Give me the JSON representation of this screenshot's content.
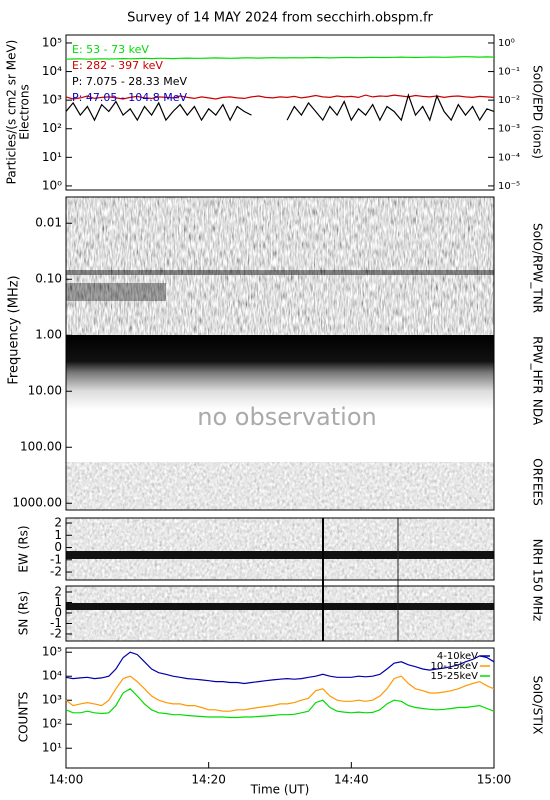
{
  "chart_data": [
    {
      "type": "line",
      "title": "Survey of 14 MAY 2024 from secchirh.obspm.fr",
      "ylabel": "Particles/(s cm2 sr MeV)",
      "ylabel_sub": "Electrons",
      "y2label": "SoIO/EPD (ions)",
      "log": true,
      "xlim": [
        0,
        60
      ],
      "ylim": [
        0.72,
        190000
      ],
      "y2lim": [
        7.2e-06,
        1.9
      ],
      "yticks": [
        {
          "value": 1,
          "label": "10⁰"
        },
        {
          "value": 10,
          "label": "10¹"
        },
        {
          "value": 100,
          "label": "10²"
        },
        {
          "value": 1000,
          "label": "10³"
        },
        {
          "value": 10000,
          "label": "10⁴"
        },
        {
          "value": 100000,
          "label": "10⁵"
        }
      ],
      "y2ticks": [
        {
          "value": 1e-05,
          "label": "10⁻⁵"
        },
        {
          "value": 0.0001,
          "label": "10⁻⁴"
        },
        {
          "value": 0.001,
          "label": "10⁻³"
        },
        {
          "value": 0.01,
          "label": "10⁻²"
        },
        {
          "value": 0.1,
          "label": "10⁻¹"
        },
        {
          "value": 1,
          "label": "10⁰"
        }
      ],
      "x": [
        0,
        1,
        2,
        3,
        4,
        5,
        6,
        7,
        8,
        9,
        10,
        11,
        12,
        13,
        14,
        15,
        16,
        17,
        18,
        19,
        20,
        21,
        22,
        23,
        24,
        25,
        26,
        27,
        28,
        29,
        30,
        31,
        32,
        33,
        34,
        35,
        36,
        37,
        38,
        39,
        40,
        41,
        42,
        43,
        44,
        45,
        46,
        47,
        48,
        49,
        50,
        51,
        52,
        53,
        54,
        55,
        56,
        57,
        58,
        59,
        60
      ],
      "series": [
        {
          "name": "E: 53 - 73 keV",
          "color": "#00dd00",
          "values": [
            27000,
            27500,
            28000,
            27000,
            27500,
            28000,
            27500,
            28000,
            28500,
            28000,
            28500,
            29000,
            28500,
            29000,
            29000,
            28500,
            29000,
            29500,
            29000,
            29000,
            29500,
            30000,
            29500,
            29000,
            29500,
            30000,
            30000,
            29500,
            30000,
            30500,
            30000,
            30000,
            30500,
            30000,
            30500,
            31000,
            30500,
            30000,
            30500,
            31000,
            31000,
            30500,
            31000,
            31500,
            31000,
            31000,
            31500,
            32000,
            31500,
            31000,
            31500,
            32000,
            32000,
            31500,
            32000,
            32500,
            33000,
            32500,
            32000,
            32500,
            32000
          ]
        },
        {
          "name": "E: 282 - 397 keV",
          "color": "#cc0000",
          "values": [
            1300,
            1100,
            1200,
            1400,
            1150,
            1250,
            1300,
            1200,
            1100,
            1250,
            1350,
            1200,
            1150,
            1300,
            1250,
            1200,
            1400,
            1250,
            1150,
            1300,
            1200,
            1100,
            1250,
            1300,
            1200,
            1150,
            1300,
            1400,
            1250,
            1200,
            1300,
            1250,
            1350,
            1200,
            1300,
            1450,
            1300,
            1250,
            1400,
            1300,
            1350,
            1250,
            1500,
            1300,
            1400,
            1350,
            1500,
            1400,
            1300,
            1450,
            1350,
            1300,
            1400,
            1250,
            1350,
            1400,
            1300,
            1250,
            1350,
            1300,
            1250
          ]
        },
        {
          "name": "P: 7.075 - 28.33 MeV",
          "color": "#000000",
          "axis": "y2",
          "values": [
            0.004,
            0.008,
            0.003,
            0.006,
            0.002,
            0.007,
            0.004,
            0.009,
            0.003,
            0.005,
            0.002,
            0.006,
            0.003,
            0.008,
            0.002,
            0.004,
            0.007,
            0.003,
            0.006,
            0.002,
            0.005,
            0.003,
            0.007,
            0.002,
            0.006,
            0.004,
            0.003,
            null,
            null,
            null,
            null,
            0.002,
            0.006,
            0.003,
            0.008,
            0.004,
            0.002,
            0.006,
            0.003,
            0.009,
            0.002,
            0.005,
            0.003,
            0.007,
            0.002,
            0.006,
            0.004,
            0.002,
            0.015,
            0.003,
            0.006,
            0.002,
            0.014,
            0.004,
            0.002,
            0.007,
            0.003,
            0.006,
            0.002,
            0.005,
            0.004
          ]
        },
        {
          "name": "P: 47.05 - 104.8 MeV",
          "color": "#0000cc",
          "axis": "y2",
          "values": [
            null,
            null,
            null,
            null,
            null,
            null,
            null,
            null,
            null,
            null,
            null,
            null,
            null,
            null,
            null,
            null,
            null,
            null,
            null,
            null,
            null,
            null,
            null,
            null,
            null,
            null,
            null,
            null,
            null,
            null,
            null,
            null,
            null,
            null,
            null,
            null,
            null,
            null,
            null,
            null,
            null,
            null,
            null,
            null,
            null,
            null,
            null,
            null,
            null,
            null,
            null,
            null,
            null,
            null,
            null,
            null,
            null,
            null,
            null,
            null,
            null
          ]
        }
      ]
    },
    {
      "type": "spectrogram",
      "ylabel": "Frequency (MHz)",
      "log": true,
      "inverted": true,
      "xlim": [
        0,
        60
      ],
      "ylim": [
        0.0034,
        1320
      ],
      "yticks": [
        {
          "value": 0.01,
          "label": "0.01"
        },
        {
          "value": 0.1,
          "label": "0.10"
        },
        {
          "value": 1,
          "label": "1.00"
        },
        {
          "value": 10,
          "label": "10.00"
        },
        {
          "value": 100,
          "label": "100.00"
        },
        {
          "value": 1000,
          "label": "1000.00"
        }
      ],
      "instruments": [
        "SoIO/RPW_TNR",
        "RPW_HFR",
        "NDA",
        "ORFEES"
      ],
      "annotation": "no observation"
    },
    {
      "type": "image",
      "ylabel": "EW (Rs)",
      "xlim": [
        0,
        60
      ],
      "ylim": [
        -2.65,
        2.41
      ],
      "yticks": [
        2,
        1,
        0,
        -1,
        -2
      ],
      "y2label": "NRH 150 MHz"
    },
    {
      "type": "image",
      "ylabel": "SN (Rs)",
      "xlim": [
        0,
        60
      ],
      "ylim": [
        -2.67,
        2.57
      ],
      "yticks": [
        2,
        1,
        0,
        -1,
        -2
      ]
    },
    {
      "type": "line",
      "ylabel": "COUNTS",
      "y2label": "SoIO/STIX",
      "xlabel": "Time (UT)",
      "log": true,
      "legend": "upper right",
      "xlim": [
        0,
        60
      ],
      "xticks": [
        {
          "value": 0,
          "label": "14:00"
        },
        {
          "value": 20,
          "label": "14:20"
        },
        {
          "value": 40,
          "label": "14:40"
        },
        {
          "value": 60,
          "label": "15:00"
        }
      ],
      "ylim": [
        1.5,
        150000
      ],
      "yticks": [
        {
          "value": 10,
          "label": "10¹"
        },
        {
          "value": 100,
          "label": "10²"
        },
        {
          "value": 1000,
          "label": "10³"
        },
        {
          "value": 10000,
          "label": "10⁴"
        },
        {
          "value": 100000,
          "label": "10⁵"
        }
      ],
      "x": [
        0,
        1,
        2,
        3,
        4,
        5,
        6,
        7,
        8,
        9,
        10,
        11,
        12,
        13,
        14,
        15,
        16,
        17,
        18,
        19,
        20,
        21,
        22,
        23,
        24,
        25,
        26,
        27,
        28,
        29,
        30,
        31,
        32,
        33,
        34,
        35,
        36,
        37,
        38,
        39,
        40,
        41,
        42,
        43,
        44,
        45,
        46,
        47,
        48,
        49,
        50,
        51,
        52,
        53,
        54,
        55,
        56,
        57,
        58,
        59,
        60
      ],
      "series": [
        {
          "name": "4-10keV",
          "color": "#0000aa",
          "values": [
            9000,
            8000,
            8500,
            9000,
            8000,
            8500,
            10000,
            20000,
            60000,
            100000,
            80000,
            40000,
            20000,
            14000,
            12000,
            10000,
            9000,
            8000,
            7500,
            7000,
            6500,
            6000,
            6000,
            5500,
            5500,
            5000,
            5500,
            6000,
            6500,
            7000,
            7500,
            8000,
            7500,
            8000,
            9000,
            10000,
            12000,
            10000,
            9000,
            9000,
            9000,
            10000,
            9500,
            10000,
            12000,
            20000,
            35000,
            40000,
            30000,
            25000,
            20000,
            18000,
            20000,
            22000,
            25000,
            30000,
            40000,
            50000,
            70000,
            60000,
            40000
          ]
        },
        {
          "name": "10-15keV",
          "color": "#ff9900",
          "values": [
            1000,
            600,
            700,
            800,
            700,
            600,
            1000,
            3000,
            8000,
            10000,
            6000,
            3000,
            1500,
            1000,
            800,
            700,
            700,
            600,
            600,
            500,
            400,
            400,
            350,
            350,
            400,
            400,
            450,
            500,
            550,
            600,
            700,
            700,
            800,
            1000,
            1200,
            2500,
            3000,
            1500,
            1000,
            900,
            900,
            1000,
            900,
            1000,
            1500,
            3000,
            8000,
            10000,
            5000,
            3000,
            2500,
            2000,
            2000,
            2200,
            2500,
            3000,
            4000,
            5000,
            6000,
            4000,
            3000
          ]
        },
        {
          "name": "15-25keV",
          "color": "#00dd00",
          "values": [
            400,
            300,
            300,
            350,
            300,
            280,
            300,
            600,
            2000,
            3000,
            1500,
            700,
            400,
            300,
            280,
            250,
            250,
            230,
            220,
            210,
            200,
            200,
            200,
            190,
            190,
            200,
            200,
            210,
            220,
            230,
            250,
            250,
            260,
            300,
            350,
            800,
            1000,
            500,
            350,
            320,
            300,
            320,
            300,
            310,
            400,
            700,
            1000,
            900,
            600,
            500,
            450,
            420,
            400,
            420,
            450,
            500,
            500,
            550,
            600,
            450,
            350
          ]
        }
      ]
    }
  ]
}
